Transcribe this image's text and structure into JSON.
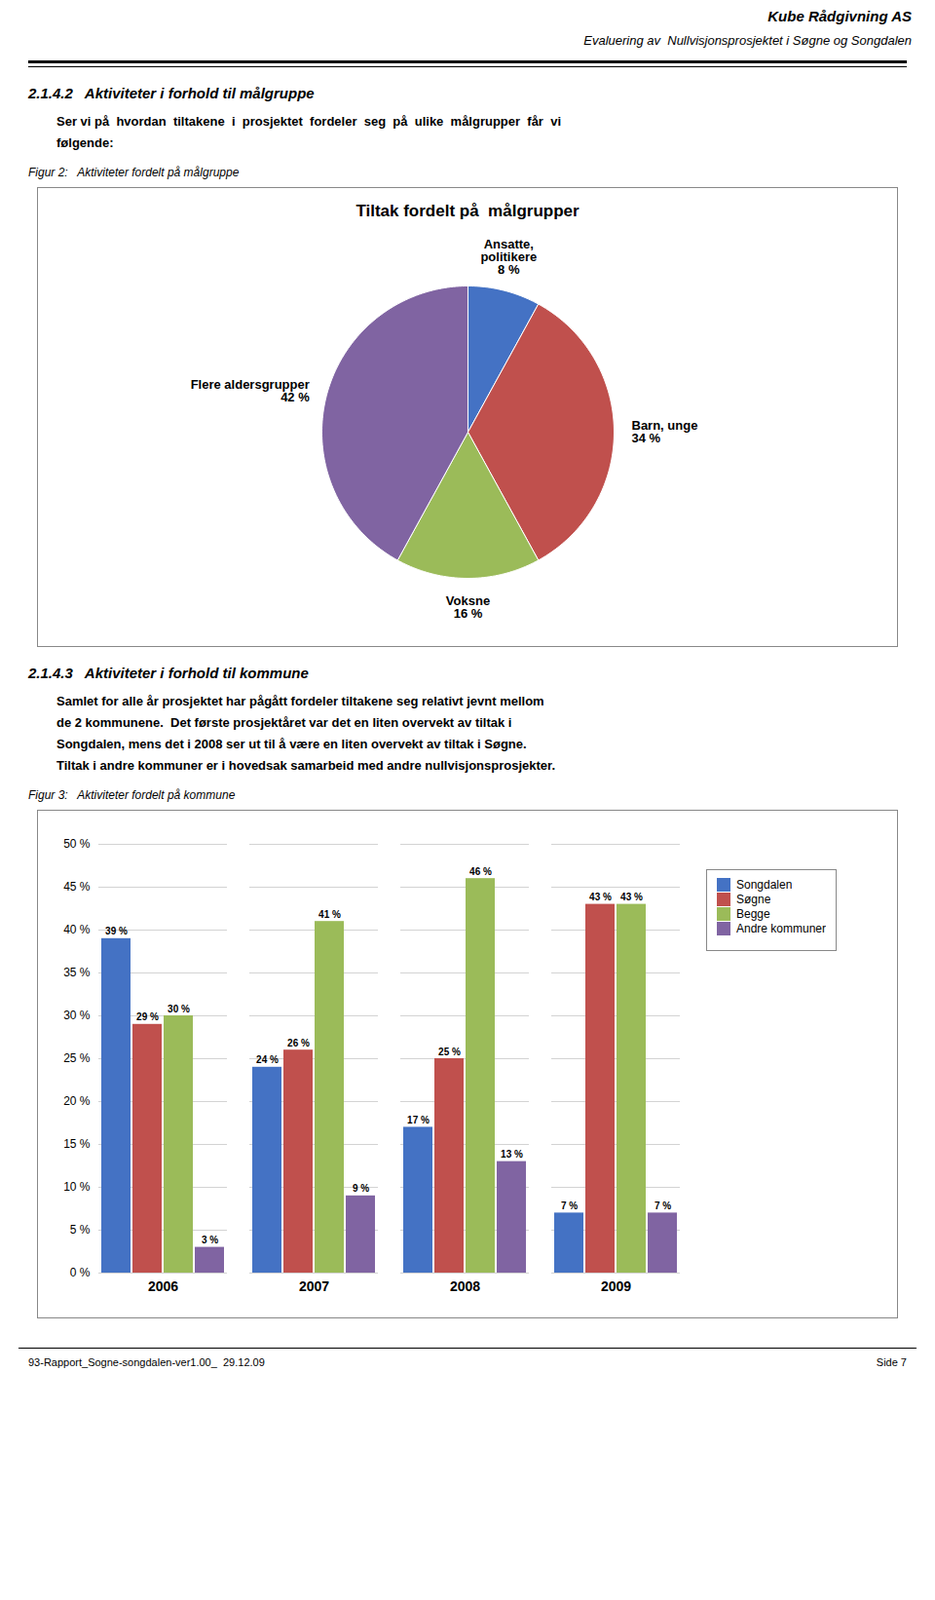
{
  "chart_data": [
    {
      "type": "pie",
      "title": "Tiltak fordelt på  målgrupper",
      "annotations": [
        "Kube Rådgivning AS",
        "Evaluering av  Nullvisjonsprosjektet i Søgne og Songdalen",
        "2.1.4.2   Aktiviteter i forhold til målgruppe",
        "Ser vi på  hvordan  tiltakene  i  prosjektet  fordeler  seg  på  ulike  målgrupper  får  vi",
        "følgende:",
        "Figur 2:   Aktiviteter fordelt på målgruppe"
      ],
      "categories": [
        "Ansatte,\npolitikere",
        "Barn, unge",
        "Voksne",
        "Flere aldersgrupper"
      ],
      "values": [
        8,
        34,
        16,
        42
      ],
      "value_labels": [
        "8 %",
        "34 %",
        "16 %",
        "42 %"
      ],
      "colors": [
        "#4472C4",
        "#C0504D",
        "#9BBB59",
        "#8064A2"
      ],
      "data_labels": true
    },
    {
      "type": "bar",
      "annotations": [
        "2.1.4.3   Aktiviteter i forhold til kommune",
        "Samlet for alle år prosjektet har pågått fordeler tiltakene seg relativt jevnt mellom",
        "de 2 kommunene.  Det første prosjektåret var det en liten overvekt av tiltak i",
        "Songdalen, mens det i 2008 ser ut til å være en liten overvekt av tiltak i Søgne.",
        "Tiltak i andre kommuner er i hovedsak samarbeid med andre nullvisjonsprosjekter.",
        "Figur 3:   Aktiviteter fordelt på kommune",
        "93-Rapport_Sogne-songdalen-ver1.00_  29.12.09",
        "Side 7"
      ],
      "categories": [
        "2006",
        "2007",
        "2008",
        "2009"
      ],
      "series": [
        {
          "name": "Songdalen",
          "color": "#4472C4",
          "values": [
            39,
            24,
            17,
            7
          ],
          "value_labels": [
            "39 %",
            "24 %",
            "17 %",
            "7 %"
          ]
        },
        {
          "name": "Søgne",
          "color": "#C0504D",
          "values": [
            29,
            26,
            25,
            43
          ],
          "value_labels": [
            "29 %",
            "26 %",
            "25 %",
            "43 %"
          ]
        },
        {
          "name": "Begge",
          "color": "#9BBB59",
          "values": [
            30,
            41,
            46,
            43
          ],
          "value_labels": [
            "30 %",
            "41 %",
            "46 %",
            "43 %"
          ]
        },
        {
          "name": "Andre kommuner",
          "color": "#8064A2",
          "values": [
            3,
            9,
            13,
            7
          ],
          "value_labels": [
            "3 %",
            "9 %",
            "13 %",
            "7 %"
          ]
        }
      ],
      "ylim": [
        0,
        50
      ],
      "yticks": [
        {
          "value": 0,
          "label": "0 %"
        },
        {
          "value": 5,
          "label": "5 %"
        },
        {
          "value": 10,
          "label": "10 %"
        },
        {
          "value": 15,
          "label": "15 %"
        },
        {
          "value": 20,
          "label": "20 %"
        },
        {
          "value": 25,
          "label": "25 %"
        },
        {
          "value": 30,
          "label": "30 %"
        },
        {
          "value": 35,
          "label": "35 %"
        },
        {
          "value": 40,
          "label": "40 %"
        },
        {
          "value": 45,
          "label": "45 %"
        },
        {
          "value": 50,
          "label": "50 %"
        }
      ],
      "grid": true,
      "data_labels": true,
      "legend": "right"
    }
  ]
}
